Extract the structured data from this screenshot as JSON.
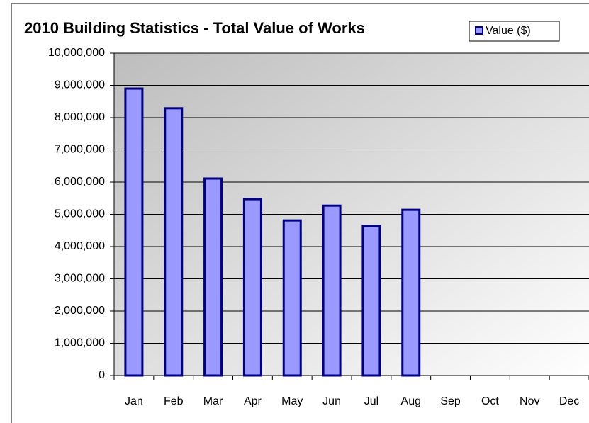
{
  "chart_data": {
    "type": "bar",
    "title": "2010 Building Statistics - Total Value of Works",
    "categories": [
      "Jan",
      "Feb",
      "Mar",
      "Apr",
      "May",
      "Jun",
      "Jul",
      "Aug",
      "Sep",
      "Oct",
      "Nov",
      "Dec"
    ],
    "series": [
      {
        "name": "Value ($)",
        "color": "#9999ff",
        "edge": "#000080",
        "values": [
          8900000,
          8290000,
          6110000,
          5470000,
          4810000,
          5270000,
          4640000,
          5140000,
          null,
          null,
          null,
          null
        ]
      }
    ],
    "ylim": [
      0,
      10000000
    ],
    "yticks": [
      {
        "value": 0,
        "label": "0"
      },
      {
        "value": 1000000,
        "label": "1,000,000"
      },
      {
        "value": 2000000,
        "label": "2,000,000"
      },
      {
        "value": 3000000,
        "label": "3,000,000"
      },
      {
        "value": 4000000,
        "label": "4,000,000"
      },
      {
        "value": 5000000,
        "label": "5,000,000"
      },
      {
        "value": 6000000,
        "label": "6,000,000"
      },
      {
        "value": 7000000,
        "label": "7,000,000"
      },
      {
        "value": 8000000,
        "label": "8,000,000"
      },
      {
        "value": 9000000,
        "label": "9,000,000"
      },
      {
        "value": 10000000,
        "label": "10,000,000"
      }
    ],
    "grid": true,
    "legend": "top-right"
  }
}
